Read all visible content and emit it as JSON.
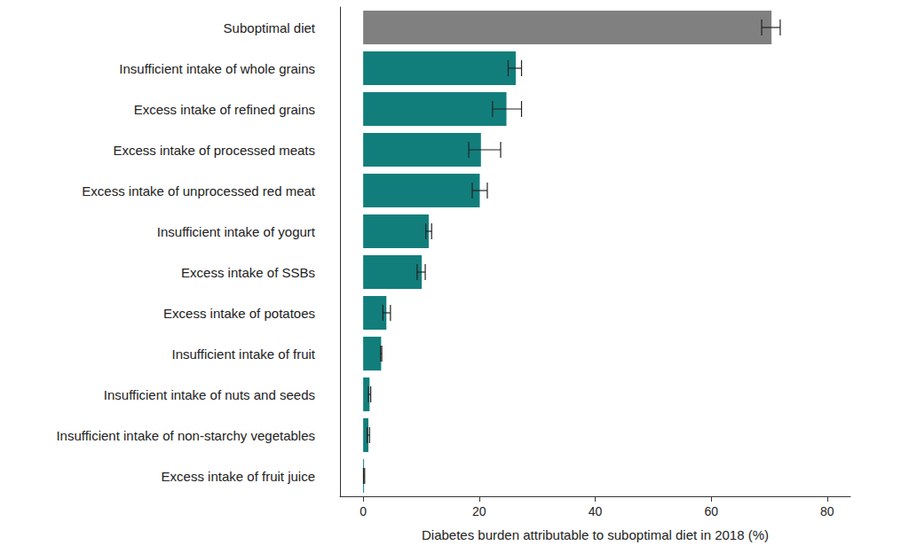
{
  "chart_data": {
    "type": "bar",
    "orientation": "horizontal",
    "categories": [
      "Suboptimal diet",
      "Insufficient intake of whole grains",
      "Excess intake of refined grains",
      "Excess intake of processed meats",
      "Excess intake of unprocessed red meat",
      "Insufficient intake of yogurt",
      "Excess intake of SSBs",
      "Excess intake of potatoes",
      "Insufficient intake of fruit",
      "Insufficient intake of nuts and seeds",
      "Insufficient intake of non-starchy vegetables",
      "Excess intake of fruit juice"
    ],
    "values": [
      70.4,
      26.3,
      24.7,
      20.3,
      20.1,
      11.3,
      10.1,
      4.0,
      3.1,
      1.1,
      0.9,
      0.15
    ],
    "error_low": [
      68.7,
      25.0,
      22.3,
      18.2,
      18.8,
      10.8,
      9.3,
      3.4,
      3.0,
      0.9,
      0.7,
      0.05
    ],
    "error_high": [
      71.9,
      27.3,
      27.3,
      23.7,
      21.4,
      11.8,
      10.7,
      4.7,
      3.2,
      1.3,
      1.1,
      0.25
    ],
    "colors": [
      "#808080",
      "#127e7b",
      "#127e7b",
      "#127e7b",
      "#127e7b",
      "#127e7b",
      "#127e7b",
      "#127e7b",
      "#127e7b",
      "#127e7b",
      "#127e7b",
      "#127e7b"
    ],
    "xlabel": "Diabetes burden attributable to suboptimal diet in 2018 (%)",
    "xlim": [
      -4,
      84
    ],
    "xticks": [
      0,
      20,
      40,
      60,
      80
    ],
    "grid": false
  }
}
